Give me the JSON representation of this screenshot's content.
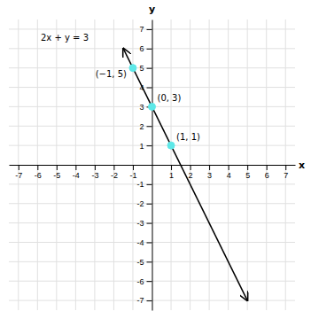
{
  "chart_data": {
    "type": "scatter",
    "xlabel": "x",
    "ylabel": "y",
    "xlim": [
      -7.5,
      7.5
    ],
    "ylim": [
      -7.5,
      7.5
    ],
    "xticks": [
      -7,
      -6,
      -5,
      -4,
      -3,
      -2,
      -1,
      1,
      2,
      3,
      4,
      5,
      6,
      7
    ],
    "yticks": [
      -7,
      -6,
      -5,
      -4,
      -3,
      -2,
      -1,
      1,
      2,
      3,
      4,
      5,
      6,
      7
    ],
    "grid": true,
    "series": [
      {
        "type": "line",
        "color": "#000000",
        "x": [
          -1.5,
          5.0
        ],
        "values": [
          6.0,
          -7.0
        ]
      },
      {
        "type": "scatter",
        "color": "#5ee8e8",
        "x": [
          -1,
          0,
          1
        ],
        "values": [
          5,
          3,
          1
        ],
        "value_labels": [
          "(−1, 5)",
          "(0, 3)",
          "(1, 1)"
        ]
      }
    ],
    "annotations": [
      "2x + y = 3"
    ]
  }
}
